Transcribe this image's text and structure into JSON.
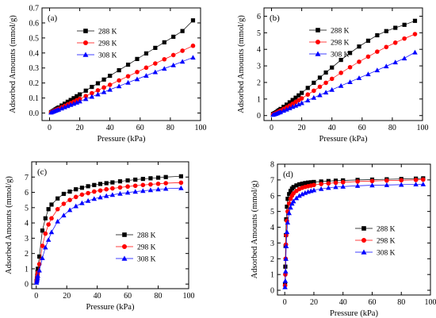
{
  "figure": {
    "xlabel": "Pressure (kPa)",
    "ylabel": "Adsorbed Amounts (mmol/g)"
  },
  "colors": {
    "288 K": "#000000",
    "298 K": "#ff0000",
    "308 K": "#0000ff"
  },
  "chart_data": [
    {
      "type": "line",
      "panel": "(a)",
      "xlabel": "Pressure (kPa)",
      "ylabel": "Adsorbed Amounts (mmol/g)",
      "xlim": [
        -5,
        100
      ],
      "ylim": [
        -0.05,
        0.7
      ],
      "xticks": [
        0,
        20,
        40,
        60,
        80,
        100
      ],
      "yticks": [
        0.0,
        0.1,
        0.2,
        0.3,
        0.4,
        0.5,
        0.6,
        0.7
      ],
      "legend": "top-left",
      "series": [
        {
          "name": "288 K",
          "marker": "square",
          "x": [
            1,
            2,
            3,
            4,
            5,
            6,
            8,
            10,
            12,
            14,
            16,
            18,
            20,
            24,
            28,
            32,
            36,
            40,
            46,
            52,
            58,
            64,
            70,
            76,
            82,
            88,
            95
          ],
          "y": [
            0.006,
            0.012,
            0.018,
            0.025,
            0.031,
            0.037,
            0.05,
            0.062,
            0.075,
            0.087,
            0.099,
            0.112,
            0.124,
            0.149,
            0.174,
            0.198,
            0.223,
            0.248,
            0.285,
            0.322,
            0.36,
            0.397,
            0.434,
            0.471,
            0.508,
            0.546,
            0.617
          ]
        },
        {
          "name": "298 K",
          "marker": "circle",
          "x": [
            1,
            2,
            3,
            4,
            5,
            6,
            8,
            10,
            12,
            14,
            16,
            18,
            20,
            24,
            28,
            32,
            36,
            40,
            46,
            52,
            58,
            64,
            70,
            76,
            82,
            88,
            95
          ],
          "y": [
            0.005,
            0.009,
            0.014,
            0.019,
            0.024,
            0.028,
            0.038,
            0.047,
            0.057,
            0.066,
            0.075,
            0.085,
            0.094,
            0.113,
            0.132,
            0.151,
            0.17,
            0.188,
            0.217,
            0.245,
            0.273,
            0.302,
            0.33,
            0.358,
            0.386,
            0.415,
            0.448
          ]
        },
        {
          "name": "308 K",
          "marker": "triangle",
          "x": [
            1,
            2,
            3,
            4,
            5,
            6,
            8,
            10,
            12,
            14,
            16,
            18,
            20,
            24,
            28,
            32,
            36,
            40,
            46,
            52,
            58,
            64,
            70,
            76,
            82,
            88,
            95
          ],
          "y": [
            0.004,
            0.008,
            0.012,
            0.016,
            0.02,
            0.023,
            0.031,
            0.039,
            0.047,
            0.055,
            0.062,
            0.07,
            0.078,
            0.094,
            0.109,
            0.125,
            0.14,
            0.156,
            0.179,
            0.203,
            0.226,
            0.249,
            0.273,
            0.296,
            0.319,
            0.343,
            0.37
          ]
        }
      ]
    },
    {
      "type": "line",
      "panel": "(b)",
      "xlabel": "Pressure (kPa)",
      "ylabel": "Adsorbed Amounts (mmol/g)",
      "xlim": [
        -5,
        100
      ],
      "ylim": [
        -0.3,
        6.5
      ],
      "xticks": [
        0,
        20,
        40,
        60,
        80,
        100
      ],
      "yticks": [
        0,
        1,
        2,
        3,
        4,
        5,
        6
      ],
      "legend": "top-left",
      "series": [
        {
          "name": "288 K",
          "marker": "square",
          "x": [
            1,
            2,
            3,
            4,
            5,
            6,
            8,
            10,
            12,
            14,
            16,
            18,
            20,
            24,
            28,
            32,
            36,
            40,
            46,
            52,
            58,
            64,
            70,
            76,
            82,
            88,
            95
          ],
          "y": [
            0.1,
            0.15,
            0.2,
            0.27,
            0.33,
            0.4,
            0.53,
            0.66,
            0.8,
            0.94,
            1.08,
            1.22,
            1.37,
            1.67,
            1.98,
            2.29,
            2.6,
            2.9,
            3.36,
            3.78,
            4.17,
            4.52,
            4.85,
            5.1,
            5.3,
            5.48,
            5.72
          ]
        },
        {
          "name": "298 K",
          "marker": "circle",
          "x": [
            1,
            2,
            3,
            4,
            5,
            6,
            8,
            10,
            12,
            14,
            16,
            18,
            20,
            24,
            28,
            32,
            36,
            40,
            46,
            52,
            58,
            64,
            70,
            76,
            82,
            88,
            95
          ],
          "y": [
            0.07,
            0.11,
            0.15,
            0.2,
            0.25,
            0.3,
            0.4,
            0.5,
            0.6,
            0.71,
            0.82,
            0.93,
            1.04,
            1.27,
            1.5,
            1.74,
            1.98,
            2.22,
            2.58,
            2.92,
            3.25,
            3.56,
            3.86,
            4.14,
            4.4,
            4.65,
            4.92
          ]
        },
        {
          "name": "308 K",
          "marker": "triangle",
          "x": [
            1,
            2,
            3,
            4,
            5,
            6,
            8,
            10,
            12,
            14,
            16,
            18,
            20,
            24,
            28,
            32,
            36,
            40,
            46,
            52,
            58,
            64,
            70,
            76,
            82,
            88,
            95
          ],
          "y": [
            0.05,
            0.08,
            0.11,
            0.15,
            0.19,
            0.22,
            0.3,
            0.37,
            0.45,
            0.53,
            0.6,
            0.68,
            0.76,
            0.92,
            1.08,
            1.24,
            1.4,
            1.56,
            1.8,
            2.03,
            2.27,
            2.5,
            2.74,
            2.98,
            3.22,
            3.46,
            3.82
          ]
        }
      ]
    },
    {
      "type": "line",
      "panel": "(c)",
      "xlabel": "Pressure (kPa)",
      "ylabel": "Adsorbed Amounts (mmol/g)",
      "xlim": [
        -3,
        100
      ],
      "ylim": [
        -0.3,
        8
      ],
      "xticks": [
        0,
        20,
        40,
        60,
        80,
        100
      ],
      "yticks": [
        0,
        1,
        2,
        3,
        4,
        5,
        6,
        7
      ],
      "legend": "bottom-right",
      "series": [
        {
          "name": "288 K",
          "marker": "square",
          "x": [
            0.2,
            0.4,
            0.6,
            0.8,
            1,
            2,
            4,
            6,
            8,
            10,
            14,
            18,
            22,
            26,
            30,
            34,
            38,
            42,
            46,
            50,
            55,
            60,
            65,
            70,
            75,
            80,
            85,
            95
          ],
          "y": [
            0.2,
            0.35,
            0.55,
            0.8,
            1.0,
            1.8,
            3.5,
            4.3,
            4.9,
            5.2,
            5.6,
            5.9,
            6.05,
            6.2,
            6.3,
            6.4,
            6.48,
            6.55,
            6.6,
            6.65,
            6.72,
            6.78,
            6.83,
            6.88,
            6.92,
            6.96,
            7.0,
            7.05
          ]
        },
        {
          "name": "298 K",
          "marker": "circle",
          "x": [
            0.2,
            0.4,
            0.6,
            0.8,
            1,
            2,
            4,
            6,
            8,
            10,
            14,
            18,
            22,
            26,
            30,
            34,
            38,
            42,
            46,
            50,
            55,
            60,
            65,
            70,
            75,
            80,
            85,
            95
          ],
          "y": [
            0.15,
            0.28,
            0.42,
            0.6,
            0.75,
            1.3,
            2.5,
            3.3,
            3.9,
            4.3,
            4.9,
            5.25,
            5.5,
            5.7,
            5.85,
            5.95,
            6.05,
            6.12,
            6.2,
            6.26,
            6.32,
            6.38,
            6.43,
            6.48,
            6.52,
            6.56,
            6.6,
            6.63
          ]
        },
        {
          "name": "308 K",
          "marker": "triangle",
          "x": [
            0.2,
            0.4,
            0.6,
            0.8,
            1,
            2,
            4,
            6,
            8,
            10,
            14,
            18,
            22,
            26,
            30,
            34,
            38,
            42,
            46,
            50,
            55,
            60,
            65,
            70,
            75,
            80,
            85,
            95
          ],
          "y": [
            0.1,
            0.2,
            0.3,
            0.42,
            0.55,
            0.9,
            1.7,
            2.4,
            2.9,
            3.4,
            4.1,
            4.5,
            4.85,
            5.1,
            5.3,
            5.45,
            5.58,
            5.68,
            5.77,
            5.84,
            5.92,
            5.99,
            6.05,
            6.1,
            6.15,
            6.2,
            6.24,
            6.28
          ]
        }
      ]
    },
    {
      "type": "line",
      "panel": "(d)",
      "xlabel": "Pressure (kPa)",
      "ylabel": "Adsorbed Amounts (mmol/g)",
      "xlim": [
        -5,
        100
      ],
      "ylim": [
        -0.3,
        8
      ],
      "xticks": [
        0,
        20,
        40,
        60,
        80,
        100
      ],
      "yticks": [
        0,
        1,
        2,
        3,
        4,
        5,
        6,
        7,
        8
      ],
      "legend": "center-right",
      "series": [
        {
          "name": "288 K",
          "marker": "square",
          "x": [
            0.2,
            0.4,
            0.6,
            0.8,
            1,
            1.5,
            2,
            3,
            4,
            5,
            6,
            8,
            10,
            12,
            14,
            16,
            18,
            20,
            25,
            30,
            35,
            40,
            50,
            60,
            70,
            80,
            90,
            95
          ],
          "y": [
            0.4,
            1.5,
            2.8,
            3.5,
            4.5,
            5.3,
            5.8,
            6.1,
            6.3,
            6.45,
            6.55,
            6.65,
            6.72,
            6.76,
            6.8,
            6.83,
            6.85,
            6.87,
            6.9,
            6.93,
            6.95,
            6.97,
            7.0,
            7.02,
            7.04,
            7.06,
            7.08,
            7.1
          ]
        },
        {
          "name": "298 K",
          "marker": "circle",
          "x": [
            0.2,
            0.4,
            0.6,
            0.8,
            1,
            1.5,
            2,
            3,
            4,
            5,
            6,
            8,
            10,
            12,
            14,
            16,
            18,
            20,
            25,
            30,
            35,
            40,
            50,
            60,
            70,
            80,
            90,
            95
          ],
          "y": [
            0.3,
            1.0,
            2.0,
            2.9,
            3.5,
            4.4,
            5.0,
            5.5,
            5.8,
            6.0,
            6.15,
            6.3,
            6.42,
            6.5,
            6.56,
            6.6,
            6.64,
            6.68,
            6.74,
            6.78,
            6.82,
            6.85,
            6.9,
            6.93,
            6.96,
            6.98,
            7.0,
            7.02
          ]
        },
        {
          "name": "308 K",
          "marker": "triangle",
          "x": [
            0.2,
            0.4,
            0.6,
            0.8,
            1,
            1.5,
            2,
            3,
            4,
            5,
            6,
            8,
            10,
            12,
            14,
            16,
            18,
            20,
            25,
            30,
            35,
            40,
            50,
            60,
            70,
            80,
            90,
            95
          ],
          "y": [
            0.2,
            0.6,
            1.2,
            2.0,
            2.8,
            3.7,
            4.3,
            4.9,
            5.25,
            5.5,
            5.65,
            5.85,
            6.0,
            6.1,
            6.18,
            6.25,
            6.3,
            6.35,
            6.43,
            6.5,
            6.55,
            6.58,
            6.63,
            6.66,
            6.68,
            6.7,
            6.72,
            6.73
          ]
        }
      ]
    }
  ]
}
